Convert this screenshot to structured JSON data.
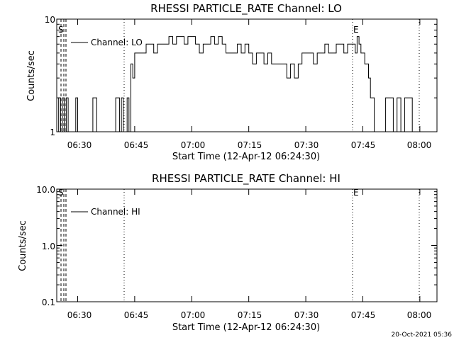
{
  "footer_timestamp": "20-Oct-2021 05:36",
  "chart_data": [
    {
      "type": "line",
      "title": "RHESSI PARTICLE_RATE Channel: LO",
      "xlabel": "Start Time (12-Apr-12 06:24:30)",
      "ylabel": "Counts/sec",
      "yscale": "log",
      "ylim": [
        1,
        10
      ],
      "ytick_labels": [
        "1",
        "10"
      ],
      "xlim": [
        "06:24:30",
        "08:04:30"
      ],
      "xticks": [
        "06:30",
        "06:45",
        "07:00",
        "07:15",
        "07:30",
        "07:45",
        "08:00"
      ],
      "legend": "top-left",
      "series": [
        {
          "name": "Channel: LO",
          "x": [
            "06:24:30",
            "06:25:00",
            "06:25:30",
            "06:26:00",
            "06:26:30",
            "06:27:00",
            "06:27:30",
            "06:28:00",
            "06:28:30",
            "06:29:00",
            "06:29:30",
            "06:30:00",
            "06:31:00",
            "06:32:00",
            "06:33:00",
            "06:34:00",
            "06:35:00",
            "06:36:00",
            "06:37:00",
            "06:38:00",
            "06:39:00",
            "06:40:00",
            "06:41:00",
            "06:41:30",
            "06:42:00",
            "06:42:30",
            "06:43:00",
            "06:43:30",
            "06:44:00",
            "06:44:30",
            "06:45:00",
            "06:46:00",
            "06:47:00",
            "06:48:00",
            "06:49:00",
            "06:50:00",
            "06:51:00",
            "06:52:00",
            "06:53:00",
            "06:54:00",
            "06:55:00",
            "06:56:00",
            "06:57:00",
            "06:58:00",
            "06:59:00",
            "07:00:00",
            "07:01:00",
            "07:02:00",
            "07:03:00",
            "07:04:00",
            "07:05:00",
            "07:06:00",
            "07:07:00",
            "07:08:00",
            "07:09:00",
            "07:10:00",
            "07:11:00",
            "07:12:00",
            "07:13:00",
            "07:14:00",
            "07:15:00",
            "07:16:00",
            "07:17:00",
            "07:18:00",
            "07:19:00",
            "07:20:00",
            "07:21:00",
            "07:22:00",
            "07:23:00",
            "07:24:00",
            "07:25:00",
            "07:26:00",
            "07:27:00",
            "07:28:00",
            "07:29:00",
            "07:30:00",
            "07:31:00",
            "07:32:00",
            "07:33:00",
            "07:34:00",
            "07:35:00",
            "07:36:00",
            "07:37:00",
            "07:38:00",
            "07:39:00",
            "07:40:00",
            "07:41:00",
            "07:42:00",
            "07:43:00",
            "07:43:30",
            "07:44:00",
            "07:44:30",
            "07:45:00",
            "07:45:30",
            "07:46:00",
            "07:46:30",
            "07:47:00",
            "07:48:00",
            "07:49:00",
            "07:50:00",
            "07:51:00",
            "07:52:00",
            "07:53:00",
            "07:54:00",
            "07:55:00",
            "07:56:00",
            "07:57:00",
            "07:58:00",
            "07:59:00",
            "08:00:00",
            "08:01:00"
          ],
          "y": [
            1,
            2,
            1,
            2,
            1,
            2,
            1,
            1,
            1,
            1,
            2,
            1,
            1,
            1,
            1,
            2,
            1,
            1,
            1,
            1,
            1,
            2,
            1,
            2,
            1,
            1,
            2,
            1,
            4,
            3,
            5,
            5,
            5,
            6,
            6,
            5,
            6,
            6,
            6,
            7,
            6,
            7,
            7,
            6,
            7,
            7,
            6,
            5,
            6,
            6,
            7,
            6,
            7,
            6,
            5,
            5,
            5,
            6,
            5,
            6,
            5,
            4,
            5,
            5,
            4,
            5,
            4,
            4,
            4,
            4,
            3,
            4,
            3,
            4,
            5,
            5,
            5,
            4,
            5,
            5,
            6,
            5,
            5,
            6,
            6,
            5,
            6,
            6,
            5,
            7,
            6,
            5,
            5,
            4,
            4,
            3,
            2,
            1,
            1,
            1,
            2,
            2,
            1,
            2,
            1,
            2,
            2,
            1,
            1,
            1,
            1
          ]
        }
      ],
      "annotations": [
        "S",
        "E"
      ]
    },
    {
      "type": "line",
      "title": "RHESSI PARTICLE_RATE Channel: HI",
      "xlabel": "Start Time (12-Apr-12 06:24:30)",
      "ylabel": "Counts/sec",
      "yscale": "log",
      "ylim": [
        0.1,
        10
      ],
      "ytick_labels": [
        "0.1",
        "1.0",
        "10.0"
      ],
      "xlim": [
        "06:24:30",
        "08:04:30"
      ],
      "xticks": [
        "06:30",
        "06:45",
        "07:00",
        "07:15",
        "07:30",
        "07:45",
        "08:00"
      ],
      "legend": "top-left",
      "series": [
        {
          "name": "Channel: HI",
          "x": [],
          "y": []
        }
      ],
      "annotations": [
        "S",
        "E"
      ]
    }
  ]
}
